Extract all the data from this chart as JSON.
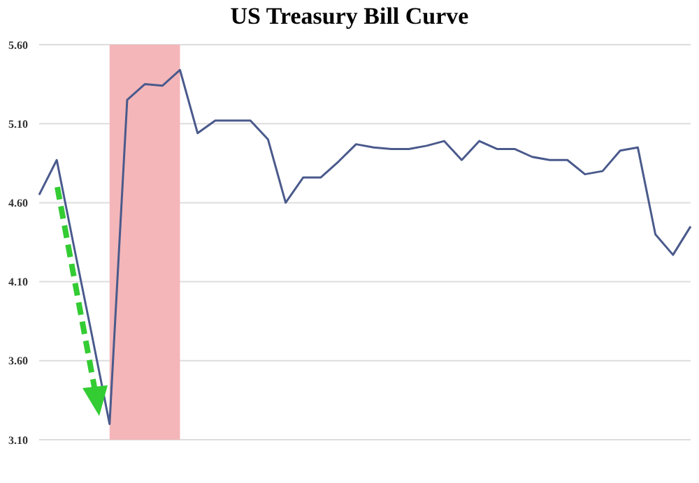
{
  "chart_data": {
    "type": "line",
    "title": "US Treasury Bill Curve",
    "categories": [
      null,
      null,
      null,
      null,
      null,
      null,
      null,
      null,
      null,
      null,
      null,
      null,
      null,
      null,
      null,
      null,
      null,
      null,
      null,
      null,
      null,
      null,
      null,
      null,
      null,
      null,
      null,
      null,
      null,
      null,
      null,
      null,
      null,
      null,
      null,
      null,
      null,
      null
    ],
    "values": [
      4.65,
      4.87,
      4.31,
      3.76,
      3.2,
      5.25,
      5.35,
      5.34,
      5.44,
      5.04,
      5.12,
      5.12,
      5.12,
      5.0,
      4.6,
      4.76,
      4.76,
      4.86,
      4.97,
      4.95,
      4.94,
      4.94,
      4.96,
      4.99,
      4.87,
      4.99,
      4.94,
      4.94,
      4.89,
      4.87,
      4.87,
      4.78,
      4.8,
      4.93,
      4.95,
      4.4,
      4.27,
      4.45
    ],
    "color": "#4a5a8c",
    "ylim": [
      3.1,
      5.6
    ],
    "yticks": [
      {
        "value": 3.1,
        "label": "3.10"
      },
      {
        "value": 3.6,
        "label": "3.60"
      },
      {
        "value": 4.1,
        "label": "4.10"
      },
      {
        "value": 4.6,
        "label": "4.60"
      },
      {
        "value": 5.1,
        "label": "5.10"
      },
      {
        "value": 5.6,
        "label": "5.60"
      }
    ],
    "grid": "y"
  }
}
